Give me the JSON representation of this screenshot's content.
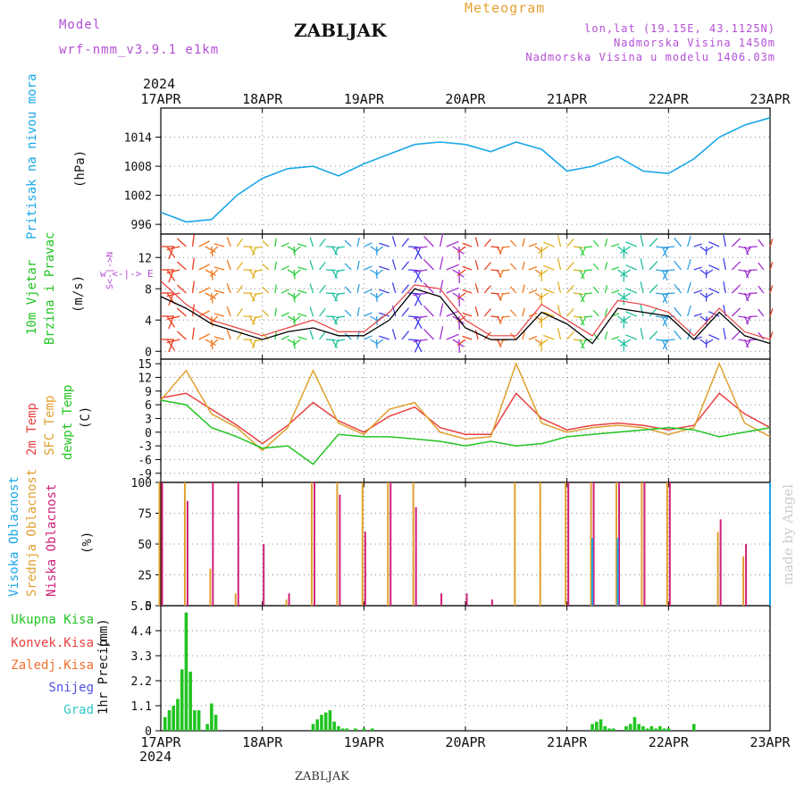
{
  "header": {
    "model_label": "Model",
    "model_name": "wrf-nmm_v3.9.1 e1km",
    "chart_title": "Meteogram",
    "station": "ZABLJAK",
    "lonlat": "lon,lat (19.15E, 43.1125N)",
    "elevation": "Nadmorska Visina 1450m",
    "model_elevation": "Nadmorska Visina u modelu 1406.03m",
    "year_top": "2024",
    "year_bottom": "2024",
    "footer_station": "ZABLJAK",
    "credit": "made by Angel"
  },
  "colors": {
    "pressure": "#1aa7e8",
    "purple_text": "#b44fd6",
    "orange_text": "#e6a030",
    "green": "#22c422",
    "red": "#e84040",
    "sfc": "#e0a030",
    "magenta": "#d0207a",
    "blue": "#3a3ae8",
    "cyan": "#30c8c8",
    "snow": "#5050e0"
  },
  "chart_data": [
    {
      "id": "pressure",
      "type": "line",
      "ylabel_1": "Pritisak na nivou mora",
      "ylabel_2": "(hPa)",
      "ylim": [
        994,
        1020
      ],
      "yticks": [
        996,
        1002,
        1008,
        1014
      ],
      "xlabels": [
        "17APR",
        "18APR",
        "19APR",
        "20APR",
        "21APR",
        "22APR",
        "23APR"
      ],
      "x_hours": [
        0,
        6,
        12,
        18,
        24,
        30,
        36,
        42,
        48,
        54,
        60,
        66,
        72,
        78,
        84,
        90,
        96,
        102,
        108,
        114,
        120,
        126,
        132,
        138,
        144
      ],
      "y": [
        998.5,
        996.5,
        997.0,
        1002.0,
        1005.5,
        1007.5,
        1008.0,
        1006.0,
        1008.5,
        1010.5,
        1012.5,
        1013.0,
        1012.5,
        1011.0,
        1013.0,
        1011.5,
        1007.0,
        1008.0,
        1010.0,
        1007.0,
        1006.5,
        1009.5,
        1014.0,
        1016.5,
        1018.0
      ],
      "grid": true
    },
    {
      "id": "wind",
      "type": "line",
      "ylabel_1": "10m Vjetar",
      "ylabel_2": "Brzina i Pravac",
      "ylabel_3": "(m/s)",
      "compass": "w <-|-> E",
      "compass_ns": "S<-|->N",
      "ylim": [
        -1,
        15
      ],
      "yticks": [
        0,
        4,
        8,
        12
      ],
      "x_hours": [
        0,
        6,
        12,
        18,
        24,
        30,
        36,
        42,
        48,
        54,
        60,
        66,
        72,
        78,
        84,
        90,
        96,
        102,
        108,
        114,
        120,
        126,
        132,
        138,
        144
      ],
      "speed": [
        7.0,
        5.5,
        3.5,
        2.5,
        1.5,
        2.5,
        3.0,
        2.0,
        2.0,
        4.0,
        8.0,
        7.0,
        3.0,
        1.5,
        1.5,
        5.0,
        3.5,
        1.0,
        5.5,
        5.0,
        4.5,
        1.5,
        5.0,
        2.0,
        1.0
      ],
      "gust": [
        9.0,
        6.0,
        4.0,
        3.0,
        2.0,
        3.0,
        4.0,
        2.5,
        2.5,
        5.0,
        8.5,
        8.0,
        4.0,
        2.0,
        2.0,
        6.0,
        4.0,
        2.0,
        6.5,
        6.0,
        5.0,
        2.0,
        5.5,
        2.5,
        1.5
      ],
      "grid": true
    },
    {
      "id": "temperature",
      "type": "line",
      "ylabel_1": "2m Temp",
      "ylabel_2": "SFC Temp",
      "ylabel_3": "dewpt Temp",
      "ylabel_4": "(C)",
      "ylim": [
        -11,
        16
      ],
      "yticks": [
        -9,
        -6,
        -3,
        0,
        3,
        6,
        9,
        12,
        15
      ],
      "x_hours": [
        0,
        6,
        12,
        18,
        24,
        30,
        36,
        42,
        48,
        54,
        60,
        66,
        72,
        78,
        84,
        90,
        96,
        102,
        108,
        114,
        120,
        126,
        132,
        138,
        144
      ],
      "series": [
        {
          "name": "2m Temp",
          "values": [
            7.5,
            8.5,
            5.0,
            1.5,
            -2.5,
            1.5,
            6.5,
            2.5,
            0.0,
            3.5,
            5.5,
            1.0,
            -0.5,
            -0.5,
            8.5,
            3.0,
            0.5,
            1.5,
            2.0,
            1.5,
            0.5,
            1.5,
            8.5,
            4.0,
            1.0
          ]
        },
        {
          "name": "SFC Temp",
          "values": [
            7.0,
            13.5,
            4.0,
            1.0,
            -4.0,
            1.0,
            13.5,
            2.0,
            -0.5,
            5.0,
            6.5,
            0.0,
            -1.5,
            -1.0,
            15.0,
            2.0,
            0.0,
            1.0,
            1.5,
            1.0,
            -0.5,
            1.0,
            15.0,
            2.0,
            -1.0
          ]
        },
        {
          "name": "dewpt Temp",
          "values": [
            7.0,
            6.0,
            1.0,
            -1.0,
            -3.5,
            -3.0,
            -7.0,
            -0.5,
            -1.0,
            -1.0,
            -1.5,
            -2.0,
            -3.0,
            -2.0,
            -3.0,
            -2.5,
            -1.0,
            -0.5,
            0.0,
            0.5,
            1.0,
            0.5,
            -1.0,
            0.0,
            1.0
          ]
        }
      ],
      "grid": true
    },
    {
      "id": "clouds",
      "type": "bar",
      "ylabel_1": "Visoka Oblacnost",
      "ylabel_2": "Srednja Oblacnost",
      "ylabel_3": "Niska Oblacnost",
      "ylabel_4": "(%)",
      "ylim": [
        0,
        100
      ],
      "yticks": [
        0,
        25,
        50,
        75,
        100
      ],
      "x_hours": [
        0,
        6,
        12,
        18,
        24,
        30,
        36,
        42,
        48,
        54,
        60,
        66,
        72,
        78,
        84,
        90,
        96,
        102,
        108,
        114,
        120,
        126,
        132,
        138,
        144
      ],
      "series": [
        {
          "name": "Srednja Oblacnost",
          "values": [
            100,
            100,
            30,
            10,
            0,
            5,
            100,
            100,
            100,
            100,
            100,
            0,
            0,
            0,
            100,
            100,
            100,
            100,
            100,
            100,
            100,
            0,
            60,
            40,
            0
          ]
        },
        {
          "name": "Niska Oblacnost",
          "values": [
            100,
            85,
            100,
            100,
            50,
            10,
            100,
            90,
            60,
            100,
            80,
            10,
            10,
            5,
            0,
            0,
            100,
            100,
            100,
            100,
            100,
            0,
            70,
            50,
            0
          ]
        },
        {
          "name": "Visoka Oblacnost",
          "values": [
            0,
            0,
            0,
            0,
            0,
            0,
            0,
            0,
            0,
            0,
            0,
            0,
            0,
            0,
            0,
            0,
            0,
            55,
            55,
            0,
            0,
            0,
            0,
            0,
            100
          ]
        }
      ],
      "grid": true
    },
    {
      "id": "precip",
      "type": "bar",
      "ylabel_1": "1hr Precip",
      "ylabel_2": "(mm)",
      "legend": [
        "Ukupna Kisa",
        "Konvek.Kisa",
        "Zaledj.Kisa",
        "Snijeg",
        "Grad"
      ],
      "ylim": [
        0,
        5.5
      ],
      "yticks": [
        0,
        1.1,
        2.2,
        3.3,
        4.4,
        5.5
      ],
      "x_hours": [
        1,
        2,
        3,
        4,
        5,
        6,
        7,
        8,
        9,
        11,
        12,
        13,
        36,
        37,
        38,
        39,
        40,
        41,
        42,
        43,
        44,
        46,
        48,
        50,
        102,
        103,
        104,
        105,
        106,
        107,
        110,
        111,
        112,
        113,
        114,
        115,
        116,
        117,
        118,
        119,
        120,
        126
      ],
      "values": [
        0.6,
        0.9,
        1.1,
        1.4,
        2.7,
        5.2,
        2.6,
        0.9,
        0.9,
        0.3,
        1.2,
        0.7,
        0.3,
        0.5,
        0.7,
        0.8,
        0.9,
        0.4,
        0.2,
        0.1,
        0.1,
        0.1,
        0.1,
        0.1,
        0.3,
        0.4,
        0.5,
        0.2,
        0.1,
        0.1,
        0.2,
        0.3,
        0.6,
        0.3,
        0.2,
        0.1,
        0.2,
        0.1,
        0.2,
        0.1,
        0.1,
        0.3
      ],
      "grid": true
    }
  ]
}
